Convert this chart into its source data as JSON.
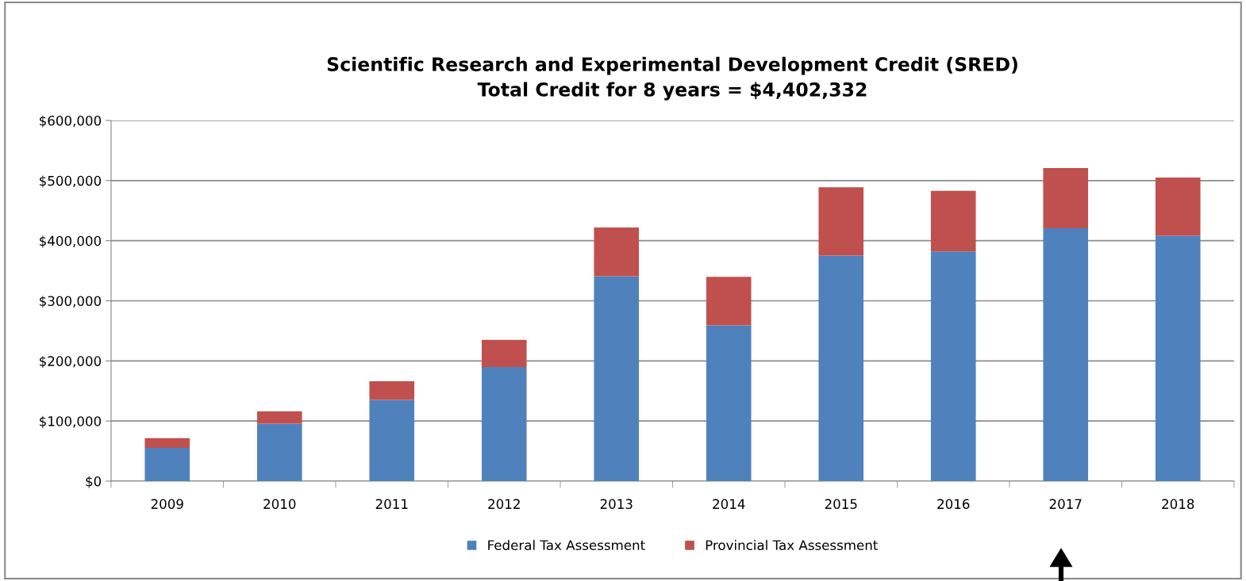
{
  "chart_data": {
    "type": "bar",
    "stacked": true,
    "title": "Scientific Research and Experimental Development Credit (SRED)\nTotal Credit for 8 years = $4,402,332",
    "categories": [
      "2009",
      "2010",
      "2011",
      "2012",
      "2013",
      "2014",
      "2015",
      "2016",
      "2017",
      "2018"
    ],
    "series": [
      {
        "name": "Federal Tax Assessment",
        "color": "#4f81bd",
        "values": [
          55500,
          95600,
          135000,
          190000,
          341000,
          259000,
          375000,
          382000,
          420500,
          408000
        ]
      },
      {
        "name": "Provincial Tax Assessment",
        "color": "#c0504d",
        "values": [
          16000,
          20500,
          31000,
          45000,
          81000,
          81000,
          114000,
          101000,
          100500,
          97000
        ]
      }
    ],
    "ylim": [
      0,
      600000
    ],
    "yticks": [
      {
        "value": 0,
        "label": "$0"
      },
      {
        "value": 100000,
        "label": "$100,000"
      },
      {
        "value": 200000,
        "label": "$200,000"
      },
      {
        "value": 300000,
        "label": "$300,000"
      },
      {
        "value": 400000,
        "label": "$400,000"
      },
      {
        "value": 500000,
        "label": "$500,000"
      },
      {
        "value": 600000,
        "label": "$600,000"
      }
    ],
    "grid": "y",
    "legend": "bottom"
  }
}
